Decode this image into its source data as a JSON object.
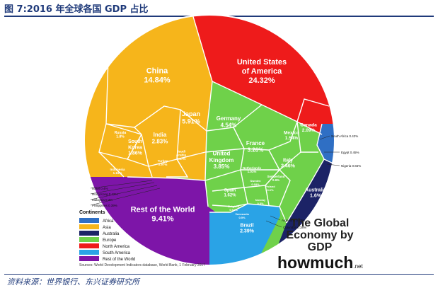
{
  "figure": {
    "title": "图 7:2016 年全球各国 GDP 占比",
    "source_note": "资料来源：世界银行、东兴证券研究所"
  },
  "brand": {
    "line1": "The Global",
    "line2": "Economy by GDP",
    "logo": "howmuch",
    "tld": ".net"
  },
  "citation": "Sources: World Development Indicators database, World Bank, 1 February 2017",
  "chart_data": {
    "type": "voronoi-treemap",
    "title": "The Global Economy by GDP",
    "unit": "% of world GDP",
    "legend": {
      "title": "Continents",
      "position": "bottom-left",
      "entries": [
        {
          "name": "Africa",
          "color": "#2f6fc4"
        },
        {
          "name": "Asia",
          "color": "#f6b51b"
        },
        {
          "name": "Australia",
          "color": "#1c2366"
        },
        {
          "name": "Europe",
          "color": "#6fd14a"
        },
        {
          "name": "North America",
          "color": "#ee1b1b"
        },
        {
          "name": "South America",
          "color": "#2aa3e6"
        },
        {
          "name": "Rest of the World",
          "color": "#7d15a8"
        }
      ]
    },
    "regions": [
      {
        "label": "United States of America",
        "lines": [
          "United States",
          "of America"
        ],
        "value": 24.32,
        "display": "24.32%",
        "continent": "North America",
        "inside": true
      },
      {
        "label": "China",
        "lines": [
          "China"
        ],
        "value": 14.84,
        "display": "14.84%",
        "continent": "Asia",
        "inside": true
      },
      {
        "label": "Rest of the World",
        "lines": [
          "Rest of the World"
        ],
        "value": 9.41,
        "display": "9.41%",
        "continent": "Rest of the World",
        "inside": true
      },
      {
        "label": "Japan",
        "lines": [
          "Japan"
        ],
        "value": 5.91,
        "display": "5.91%",
        "continent": "Asia",
        "inside": true
      },
      {
        "label": "Germany",
        "lines": [
          "Germany"
        ],
        "value": 4.54,
        "display": "4.54%",
        "continent": "Europe",
        "inside": true
      },
      {
        "label": "United Kingdom",
        "lines": [
          "United",
          "Kingdom"
        ],
        "value": 3.85,
        "display": "3.85%",
        "continent": "Europe",
        "inside": true
      },
      {
        "label": "France",
        "lines": [
          "France"
        ],
        "value": 3.26,
        "display": "3.26%",
        "continent": "Europe",
        "inside": true
      },
      {
        "label": "India",
        "lines": [
          "India"
        ],
        "value": 2.83,
        "display": "2.83%",
        "continent": "Asia",
        "inside": true
      },
      {
        "label": "Italy",
        "lines": [
          "Italy"
        ],
        "value": 2.46,
        "display": "2.46%",
        "continent": "Europe",
        "inside": true
      },
      {
        "label": "Brazil",
        "lines": [
          "Brazil"
        ],
        "value": 2.39,
        "display": "2.39%",
        "continent": "South America",
        "inside": true
      },
      {
        "label": "Canada",
        "lines": [
          "Canada"
        ],
        "value": 2.09,
        "display": "2.09%",
        "continent": "North America",
        "inside": true
      },
      {
        "label": "South Korea",
        "lines": [
          "South",
          "Korea"
        ],
        "value": 1.86,
        "display": "1.86%",
        "continent": "Asia",
        "inside": true
      },
      {
        "label": "Russia",
        "lines": [
          "Russia"
        ],
        "value": 1.8,
        "display": "1.8%",
        "continent": "Asia",
        "inside": true
      },
      {
        "label": "Australia",
        "lines": [
          "Australia"
        ],
        "value": 1.6,
        "display": "1.6%",
        "continent": "Australia",
        "inside": true
      },
      {
        "label": "Spain",
        "lines": [
          "Spain"
        ],
        "value": 1.62,
        "display": "1.62%",
        "continent": "Europe",
        "inside": true
      },
      {
        "label": "Mexico",
        "lines": [
          "Mexico"
        ],
        "value": 1.54,
        "display": "1.54%",
        "continent": "North America",
        "inside": true
      },
      {
        "label": "Indonesia",
        "lines": [
          "Indonesia"
        ],
        "value": 1.16,
        "display": "1.16%",
        "continent": "Asia",
        "inside": true
      },
      {
        "label": "Netherlands",
        "lines": [
          "Netherlands"
        ],
        "value": 1.01,
        "display": "1.01%",
        "continent": "Europe",
        "inside": true
      },
      {
        "label": "Turkey",
        "lines": [
          "Turkey"
        ],
        "value": 0.97,
        "display": "0.97%",
        "continent": "Asia",
        "inside": true
      },
      {
        "label": "Switzerland",
        "lines": [
          "Switzerland"
        ],
        "value": 0.9,
        "display": "0.9%",
        "continent": "Europe",
        "inside": true
      },
      {
        "label": "Saudi Arabia",
        "lines": [
          "Saudi",
          "Arabia"
        ],
        "value": 0.87,
        "display": "0.87%",
        "continent": "Asia",
        "inside": true
      },
      {
        "label": "Argentina",
        "lines": [
          "Argentina"
        ],
        "value": 0.73,
        "display": "0.73%",
        "continent": "South America",
        "inside": false
      },
      {
        "label": "Sweden",
        "lines": [
          "Sweden"
        ],
        "value": 0.68,
        "display": "0.68%",
        "continent": "Europe",
        "inside": true
      },
      {
        "label": "Poland",
        "lines": [
          "Poland"
        ],
        "value": 0.6,
        "display": "0.6%",
        "continent": "Europe",
        "inside": true
      },
      {
        "label": "Nigeria",
        "lines": [
          "Nigeria"
        ],
        "value": 0.65,
        "display": "0.65%",
        "continent": "Africa",
        "inside": false
      },
      {
        "label": "Belgium",
        "lines": [
          "Belgium"
        ],
        "value": 0.61,
        "display": "0.61%",
        "continent": "Europe",
        "inside": true
      },
      {
        "label": "Norway",
        "lines": [
          "Norway"
        ],
        "value": 0.5,
        "display": "0.5%",
        "continent": "Europe",
        "inside": true
      },
      {
        "label": "South Africa",
        "lines": [
          "South Africa"
        ],
        "value": 0.42,
        "display": "0.42%",
        "continent": "Africa",
        "inside": false
      },
      {
        "label": "Hong Kong",
        "lines": [
          "Hong Kong"
        ],
        "value": 0.42,
        "display": "0.42%",
        "continent": "Asia",
        "inside": false
      },
      {
        "label": "Egypt",
        "lines": [
          "Egypt"
        ],
        "value": 0.45,
        "display": "0.45%",
        "continent": "Africa",
        "inside": false
      },
      {
        "label": "Venezuela",
        "lines": [
          "Venezuela"
        ],
        "value": 0.5,
        "display": "0.5%",
        "continent": "South America",
        "inside": true
      },
      {
        "label": "Israel",
        "lines": [
          "Israel"
        ],
        "value": 0.4,
        "display": "0.4%",
        "continent": "Asia",
        "inside": false
      },
      {
        "label": "Malaysia",
        "lines": [
          "Malaysia"
        ],
        "value": 0.4,
        "display": "0.4%",
        "continent": "Asia",
        "inside": false
      },
      {
        "label": "Philippines",
        "lines": [
          "Philippines"
        ],
        "value": 0.39,
        "display": "0.39%",
        "continent": "Asia",
        "inside": false
      },
      {
        "label": "Colombia",
        "lines": [
          "Colombia"
        ],
        "value": 0.38,
        "display": "0.38%",
        "continent": "South America",
        "inside": false
      }
    ]
  }
}
